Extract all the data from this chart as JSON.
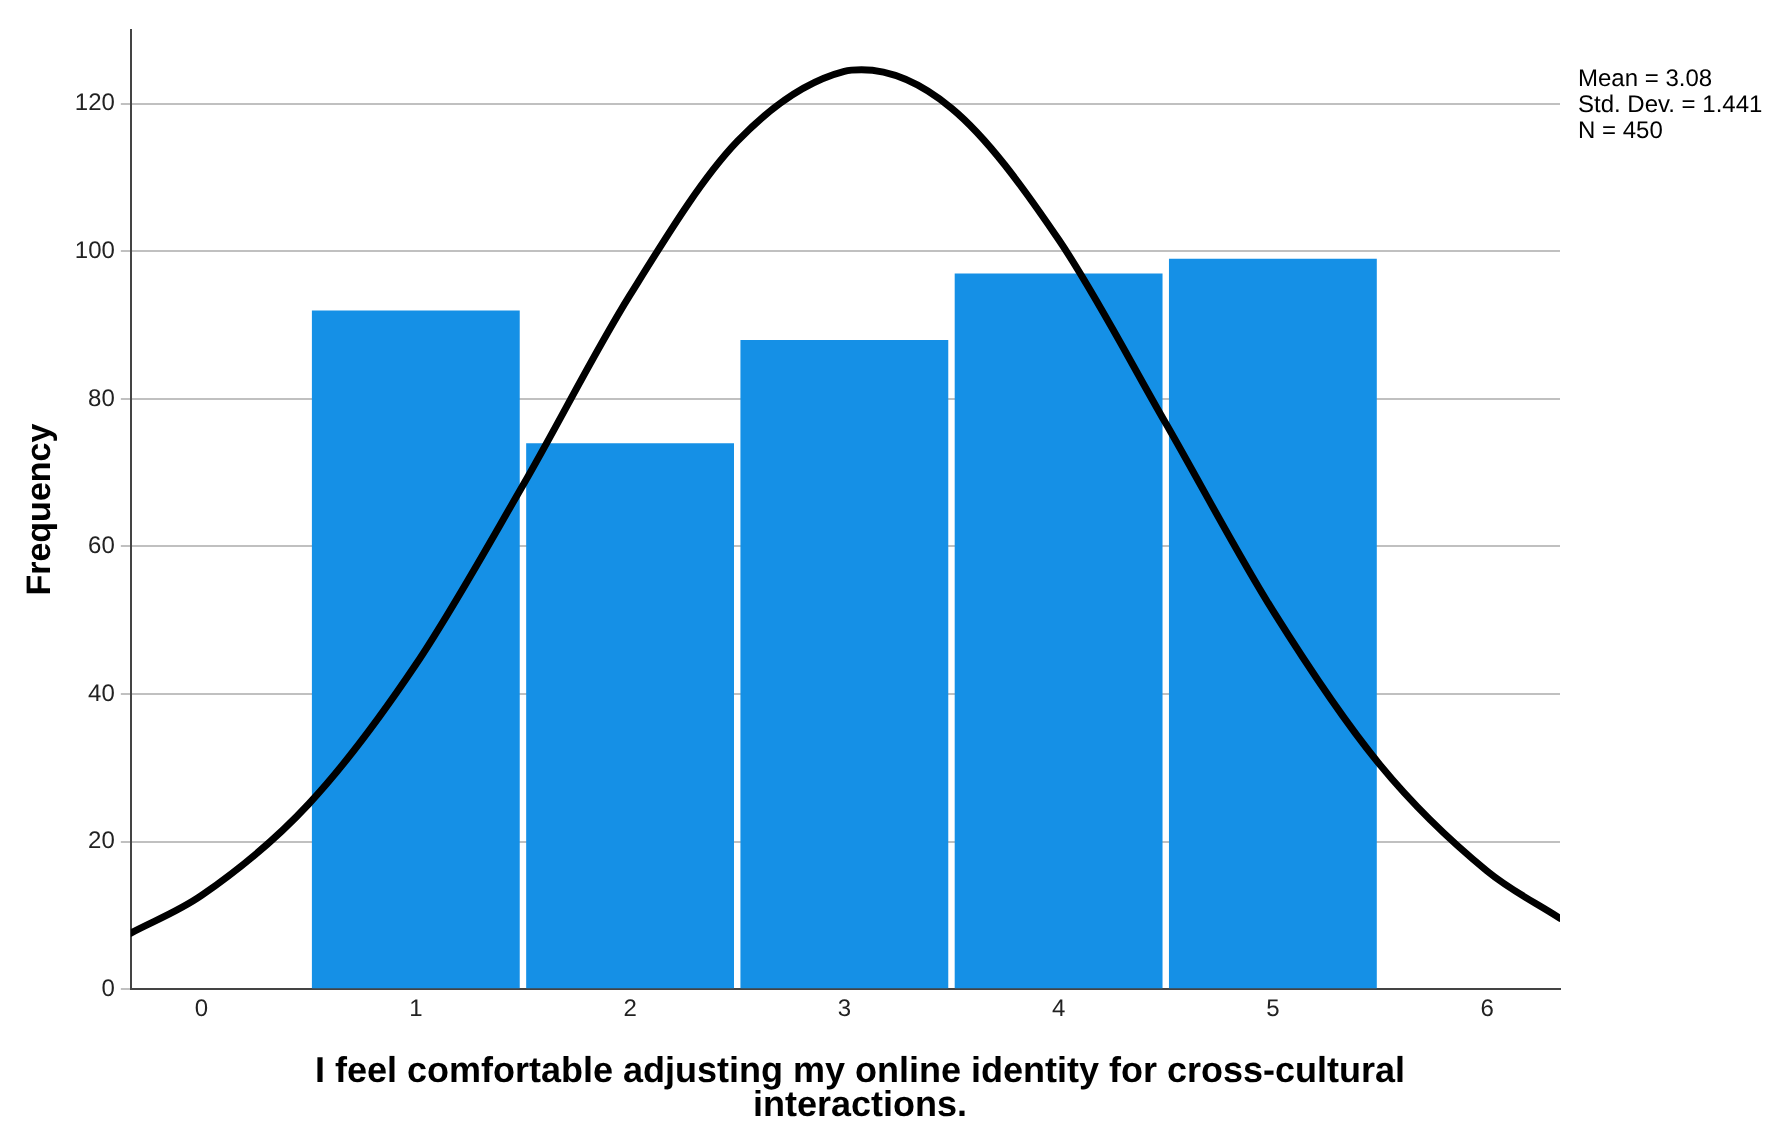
{
  "chart_data": {
    "type": "histogram",
    "xlabel": "I feel comfortable adjusting my online identity for cross-cultural interactions.",
    "ylabel": "Frequency",
    "bins": [
      0.5,
      1.5,
      2.5,
      3.5,
      4.5,
      5.5
    ],
    "values": [
      92,
      74,
      88,
      97,
      99
    ],
    "color": "#1590e6",
    "series": [
      {
        "type": "line",
        "color": "#000000",
        "x": [
          -0.33,
          0,
          0.5,
          1,
          1.5,
          2,
          2.5,
          3,
          3.08,
          3.5,
          4,
          4.5,
          5,
          5.5,
          6,
          6.34
        ],
        "values": [
          7.6,
          12.7,
          25.1,
          44.0,
          68.3,
          94.1,
          114.9,
          124.4,
          124.6,
          119.4,
          101.6,
          76.7,
          51.3,
          30.4,
          16.0,
          9.6
        ]
      }
    ],
    "xlim": [
      -0.33,
      6.34
    ],
    "ylim": [
      0,
      130
    ],
    "xticks": [
      0,
      1,
      2,
      3,
      4,
      5,
      6
    ],
    "yticks": [
      0,
      20,
      40,
      60,
      80,
      100,
      120
    ],
    "grid": "y",
    "annotations": [
      "Mean = 3.08",
      "Std. Dev. = 1.441",
      "N = 450"
    ]
  }
}
